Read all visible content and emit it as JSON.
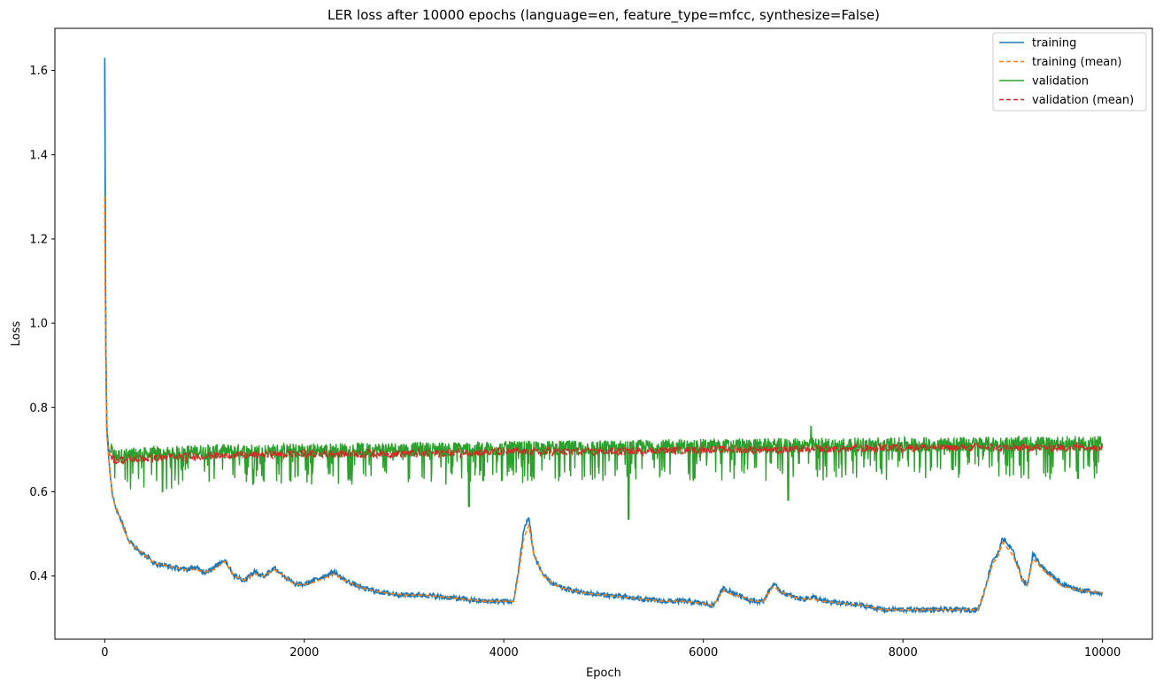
{
  "chart_data": {
    "type": "line",
    "title": "LER loss after 10000 epochs (language=en, feature_type=mfcc, synthesize=False)",
    "xlabel": "Epoch",
    "ylabel": "Loss",
    "xlim": [
      -500,
      10500
    ],
    "ylim": [
      0.25,
      1.7
    ],
    "xticks": [
      0,
      2000,
      4000,
      6000,
      8000,
      10000
    ],
    "xtick_labels": [
      "0",
      "2000",
      "4000",
      "6000",
      "8000",
      "10000"
    ],
    "yticks": [
      0.4,
      0.6,
      0.8,
      1.0,
      1.2,
      1.4,
      1.6
    ],
    "ytick_labels": [
      "0.4",
      "0.6",
      "0.8",
      "1.0",
      "1.2",
      "1.4",
      "1.6"
    ],
    "grid": false,
    "legend_position": "top-right",
    "series": [
      {
        "name": "training",
        "color": "#1f77b4",
        "style": "solid",
        "x": [
          0,
          10,
          20,
          40,
          60,
          80,
          100,
          150,
          200,
          250,
          300,
          400,
          500,
          600,
          700,
          800,
          900,
          1000,
          1100,
          1200,
          1300,
          1400,
          1500,
          1600,
          1700,
          1800,
          1900,
          2000,
          2100,
          2200,
          2300,
          2400,
          2500,
          2600,
          2700,
          2800,
          3000,
          3200,
          3400,
          3600,
          3800,
          4000,
          4100,
          4150,
          4200,
          4250,
          4300,
          4400,
          4500,
          4600,
          4800,
          5000,
          5200,
          5400,
          5600,
          5800,
          6000,
          6100,
          6200,
          6300,
          6400,
          6500,
          6600,
          6700,
          6800,
          6900,
          7000,
          7100,
          7200,
          7400,
          7600,
          7800,
          8000,
          8200,
          8400,
          8600,
          8750,
          8800,
          8900,
          8950,
          9000,
          9100,
          9200,
          9250,
          9300,
          9350,
          9400,
          9500,
          9600,
          9800,
          10000
        ],
        "y": [
          1.63,
          0.95,
          0.75,
          0.68,
          0.63,
          0.59,
          0.57,
          0.54,
          0.51,
          0.48,
          0.47,
          0.45,
          0.43,
          0.425,
          0.42,
          0.415,
          0.42,
          0.41,
          0.42,
          0.44,
          0.4,
          0.39,
          0.41,
          0.4,
          0.42,
          0.4,
          0.38,
          0.38,
          0.39,
          0.4,
          0.41,
          0.39,
          0.38,
          0.37,
          0.365,
          0.36,
          0.355,
          0.355,
          0.35,
          0.345,
          0.34,
          0.34,
          0.34,
          0.42,
          0.51,
          0.54,
          0.45,
          0.4,
          0.38,
          0.37,
          0.36,
          0.355,
          0.35,
          0.345,
          0.34,
          0.34,
          0.335,
          0.33,
          0.37,
          0.36,
          0.35,
          0.34,
          0.34,
          0.38,
          0.36,
          0.35,
          0.345,
          0.35,
          0.34,
          0.335,
          0.33,
          0.32,
          0.32,
          0.32,
          0.32,
          0.32,
          0.32,
          0.35,
          0.44,
          0.45,
          0.49,
          0.46,
          0.39,
          0.38,
          0.45,
          0.44,
          0.42,
          0.4,
          0.38,
          0.365,
          0.36
        ]
      },
      {
        "name": "training (mean)",
        "color": "#ff7f0e",
        "style": "dashed",
        "x": [
          0,
          10,
          20,
          40,
          60,
          80,
          100,
          150,
          200,
          250,
          300,
          400,
          500,
          600,
          700,
          800,
          900,
          1000,
          1100,
          1200,
          1300,
          1400,
          1500,
          1600,
          1700,
          1800,
          1900,
          2000,
          2100,
          2200,
          2300,
          2400,
          2500,
          2600,
          2700,
          2800,
          3000,
          3200,
          3400,
          3600,
          3800,
          4000,
          4100,
          4150,
          4200,
          4250,
          4300,
          4400,
          4500,
          4600,
          4800,
          5000,
          5200,
          5400,
          5600,
          5800,
          6000,
          6100,
          6200,
          6300,
          6400,
          6500,
          6600,
          6700,
          6800,
          6900,
          7000,
          7100,
          7200,
          7400,
          7600,
          7800,
          8000,
          8200,
          8400,
          8600,
          8750,
          8800,
          8900,
          8950,
          9000,
          9100,
          9200,
          9250,
          9300,
          9350,
          9400,
          9500,
          9600,
          9800,
          10000
        ],
        "y": [
          1.3,
          0.93,
          0.74,
          0.68,
          0.63,
          0.59,
          0.57,
          0.54,
          0.505,
          0.48,
          0.47,
          0.45,
          0.43,
          0.425,
          0.42,
          0.415,
          0.415,
          0.41,
          0.415,
          0.435,
          0.4,
          0.39,
          0.405,
          0.4,
          0.415,
          0.4,
          0.38,
          0.38,
          0.385,
          0.395,
          0.405,
          0.39,
          0.38,
          0.37,
          0.365,
          0.36,
          0.355,
          0.355,
          0.35,
          0.345,
          0.34,
          0.34,
          0.34,
          0.41,
          0.49,
          0.52,
          0.45,
          0.4,
          0.38,
          0.37,
          0.36,
          0.355,
          0.35,
          0.345,
          0.34,
          0.34,
          0.335,
          0.33,
          0.365,
          0.355,
          0.35,
          0.34,
          0.34,
          0.375,
          0.36,
          0.35,
          0.345,
          0.345,
          0.34,
          0.335,
          0.33,
          0.32,
          0.32,
          0.32,
          0.32,
          0.32,
          0.32,
          0.35,
          0.43,
          0.445,
          0.48,
          0.45,
          0.39,
          0.38,
          0.44,
          0.43,
          0.415,
          0.395,
          0.375,
          0.365,
          0.36
        ]
      },
      {
        "name": "validation",
        "color": "#2ca02c",
        "style": "solid",
        "center": [
          [
            0,
            1.61
          ],
          [
            10,
            1.0
          ],
          [
            20,
            0.76
          ],
          [
            40,
            0.7
          ],
          [
            100,
            0.68
          ],
          [
            1000,
            0.69
          ],
          [
            3000,
            0.695
          ],
          [
            5000,
            0.7
          ],
          [
            7000,
            0.705
          ],
          [
            10000,
            0.71
          ]
        ],
        "upper_envelope": [
          0.7,
          0.705,
          0.71,
          0.715,
          0.72,
          0.725,
          0.73
        ],
        "lower_envelope": [
          0.6,
          0.62,
          0.63,
          0.62,
          0.61,
          0.62,
          0.63
        ],
        "min_spikes": [
          [
            580,
            0.6
          ],
          [
            3650,
            0.565
          ],
          [
            5250,
            0.535
          ],
          [
            6850,
            0.58
          ]
        ],
        "max_spikes": [
          [
            7080,
            0.755
          ]
        ]
      },
      {
        "name": "validation (mean)",
        "color": "#d62728",
        "style": "dashed",
        "x": [
          0,
          10,
          20,
          40,
          100,
          500,
          1000,
          2000,
          3000,
          4000,
          5000,
          6000,
          7000,
          8000,
          9000,
          10000
        ],
        "y": [
          1.3,
          0.95,
          0.74,
          0.69,
          0.675,
          0.68,
          0.685,
          0.69,
          0.69,
          0.695,
          0.695,
          0.7,
          0.7,
          0.705,
          0.705,
          0.705
        ]
      }
    ]
  }
}
